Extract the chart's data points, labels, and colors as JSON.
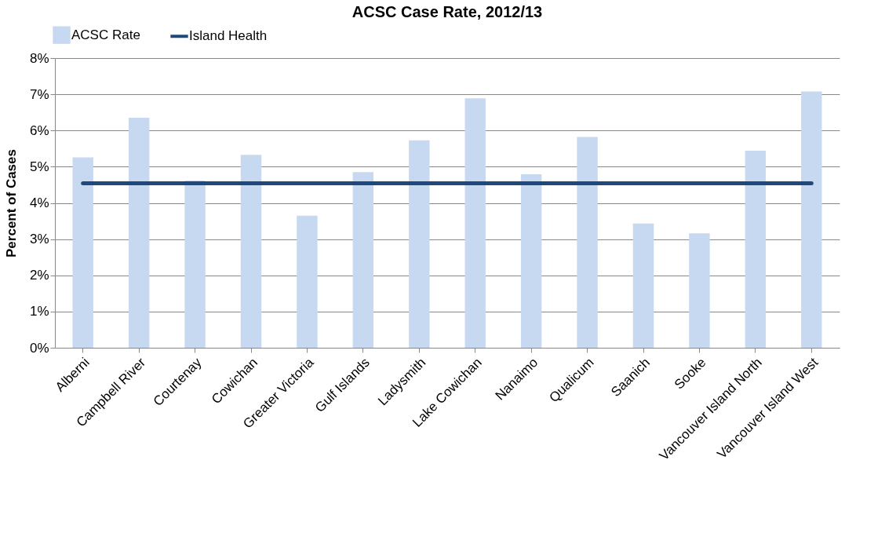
{
  "chart_data": {
    "type": "bar",
    "title": "ACSC Case Rate, 2012/13",
    "ylabel": "Percent of Cases",
    "categories": [
      "Alberni",
      "Campbell River",
      "Courtenay",
      "Cowichan",
      "Greater Victoria",
      "Gulf Islands",
      "Ladysmith",
      "Lake Cowichan",
      "Nanaimo",
      "Qualicum",
      "Saanich",
      "Sooke",
      "Vancouver Island North",
      "Vancouver Island West"
    ],
    "series": [
      {
        "name": "ACSC Rate",
        "color": "#c6d9f1",
        "values": [
          5.26,
          6.35,
          4.62,
          5.33,
          3.65,
          4.85,
          5.73,
          6.89,
          4.79,
          5.82,
          3.43,
          3.16,
          5.44,
          7.08
        ]
      },
      {
        "name": "Island Health",
        "type": "line",
        "color": "#1f497d",
        "values": [
          4.54,
          4.54,
          4.54,
          4.54,
          4.54,
          4.54,
          4.54,
          4.54,
          4.54,
          4.54,
          4.54,
          4.54,
          4.54,
          4.54
        ]
      }
    ],
    "ylim": [
      0,
      8
    ],
    "yticks": [
      {
        "value": 0,
        "label": "0%"
      },
      {
        "value": 1,
        "label": "1%"
      },
      {
        "value": 2,
        "label": "2%"
      },
      {
        "value": 3,
        "label": "3%"
      },
      {
        "value": 4,
        "label": "4%"
      },
      {
        "value": 5,
        "label": "5%"
      },
      {
        "value": 6,
        "label": "6%"
      },
      {
        "value": 7,
        "label": "7%"
      },
      {
        "value": 8,
        "label": "8%"
      }
    ],
    "grid": "y",
    "legend": "top",
    "marker": "none"
  }
}
